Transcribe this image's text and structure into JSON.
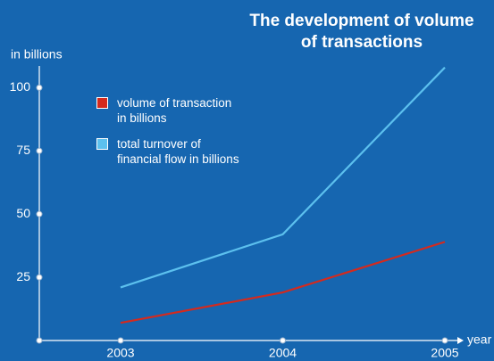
{
  "chart_data": {
    "type": "line",
    "title": "The development of volume\nof transactions",
    "y_label": "in billions",
    "x_label": "year",
    "categories": [
      "2003",
      "2004",
      "2005"
    ],
    "series": [
      {
        "name": "volume of transaction\n  in billions",
        "color": "#d42a1e",
        "values": [
          7,
          19,
          39
        ]
      },
      {
        "name": "total turnover of\nfinancial flow in billions",
        "color": "#5cc0ee",
        "values": [
          21,
          42,
          108
        ]
      }
    ],
    "ylim": [
      0,
      110
    ],
    "yticks": [
      25,
      50,
      75,
      100
    ],
    "legend": "upper left"
  }
}
